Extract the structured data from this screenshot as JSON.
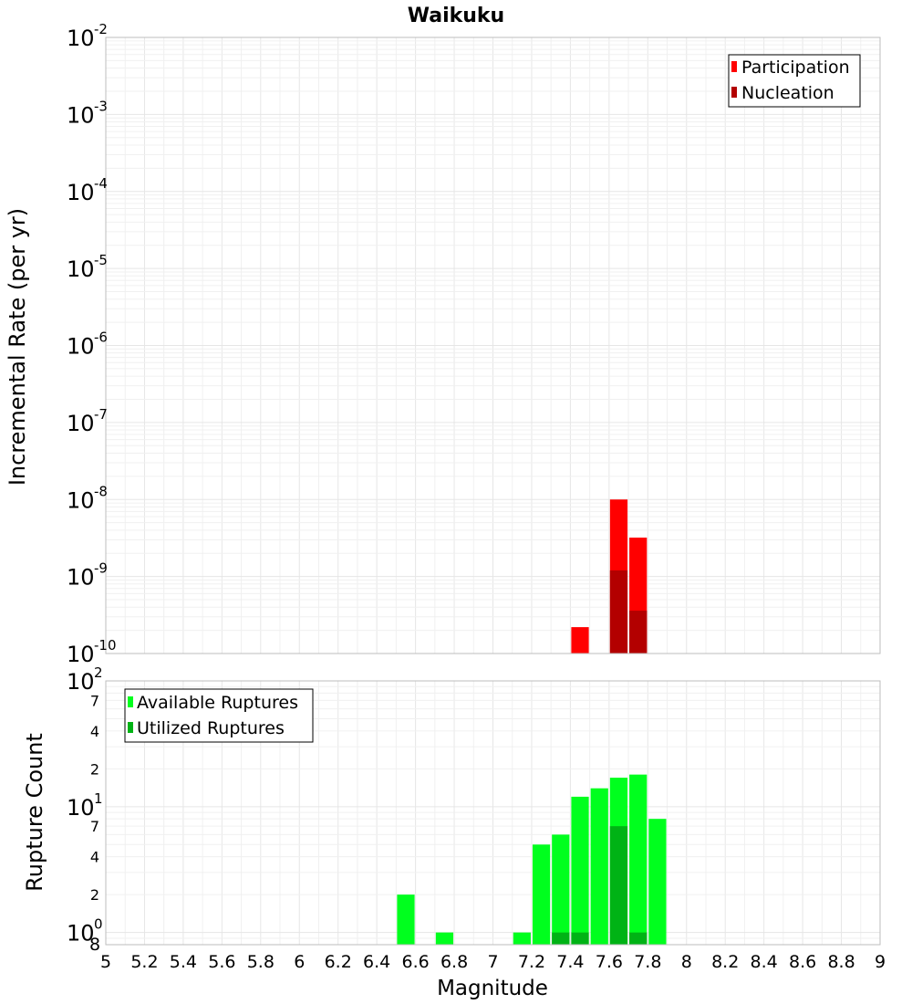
{
  "chart_data": [
    {
      "type": "bar",
      "title": "Waikuku",
      "ylabel": "Incremental Rate (per yr)",
      "xlabel": "",
      "y_scale": "log",
      "ylim": [
        1e-10,
        0.01
      ],
      "xlim": [
        5,
        9
      ],
      "bin_width": 0.1,
      "y_major_ticks": [
        {
          "base": "10",
          "exp": "-2",
          "value": 0.01
        },
        {
          "base": "10",
          "exp": "-3",
          "value": 0.001
        },
        {
          "base": "10",
          "exp": "-4",
          "value": 0.0001
        },
        {
          "base": "10",
          "exp": "-5",
          "value": 1e-05
        },
        {
          "base": "10",
          "exp": "-6",
          "value": 1e-06
        },
        {
          "base": "10",
          "exp": "-7",
          "value": 1e-07
        },
        {
          "base": "10",
          "exp": "-8",
          "value": 1e-08
        },
        {
          "base": "10",
          "exp": "-9",
          "value": 1e-09
        },
        {
          "base": "10",
          "exp": "-10",
          "value": 1e-10
        }
      ],
      "legend": {
        "position": "top-right",
        "entries": [
          {
            "label": "Participation",
            "color": "#ff0000"
          },
          {
            "label": "Nucleation",
            "color": "#b30000"
          }
        ]
      },
      "series": [
        {
          "name": "Participation",
          "color": "#ff0000",
          "x": [
            7.45,
            7.65,
            7.75
          ],
          "values": [
            2.2e-10,
            1e-08,
            3.2e-09
          ]
        },
        {
          "name": "Nucleation",
          "color": "#b30000",
          "x": [
            7.65,
            7.75
          ],
          "values": [
            1.2e-09,
            3.6e-10
          ]
        }
      ]
    },
    {
      "type": "bar",
      "title": "",
      "ylabel": "Rupture Count",
      "xlabel": "Magnitude",
      "y_scale": "log",
      "ylim": [
        0.8,
        100
      ],
      "xlim": [
        5,
        9
      ],
      "bin_width": 0.1,
      "x_ticks": [
        "5",
        "5.2",
        "5.4",
        "5.6",
        "5.8",
        "6",
        "6.2",
        "6.4",
        "6.6",
        "6.8",
        "7",
        "7.2",
        "7.4",
        "7.6",
        "7.8",
        "8",
        "8.2",
        "8.4",
        "8.6",
        "8.8",
        "9"
      ],
      "y_major_ticks": [
        {
          "base": "10",
          "exp": "2",
          "value": 100
        },
        {
          "base": "10",
          "exp": "1",
          "value": 10
        },
        {
          "base": "10",
          "exp": "0",
          "value": 1
        }
      ],
      "y_minor_labels": [
        {
          "label": "7",
          "value": 70
        },
        {
          "label": "4",
          "value": 40
        },
        {
          "label": "2",
          "value": 20
        },
        {
          "label": "7",
          "value": 7
        },
        {
          "label": "4",
          "value": 4
        },
        {
          "label": "2",
          "value": 2
        },
        {
          "label": "8",
          "value": 0.8
        }
      ],
      "legend": {
        "position": "top-left",
        "entries": [
          {
            "label": "Available Ruptures",
            "color": "#00ff1e"
          },
          {
            "label": "Utilized Ruptures",
            "color": "#00b315"
          }
        ]
      },
      "series": [
        {
          "name": "Available Ruptures",
          "color": "#00ff1e",
          "x": [
            6.55,
            6.75,
            7.15,
            7.25,
            7.35,
            7.45,
            7.55,
            7.65,
            7.75,
            7.85
          ],
          "values": [
            2,
            1,
            1,
            5,
            6,
            12,
            14,
            17,
            18,
            8
          ]
        },
        {
          "name": "Utilized Ruptures",
          "color": "#00b315",
          "x": [
            7.35,
            7.45,
            7.65,
            7.75
          ],
          "values": [
            1,
            1,
            7,
            1
          ]
        }
      ]
    }
  ]
}
